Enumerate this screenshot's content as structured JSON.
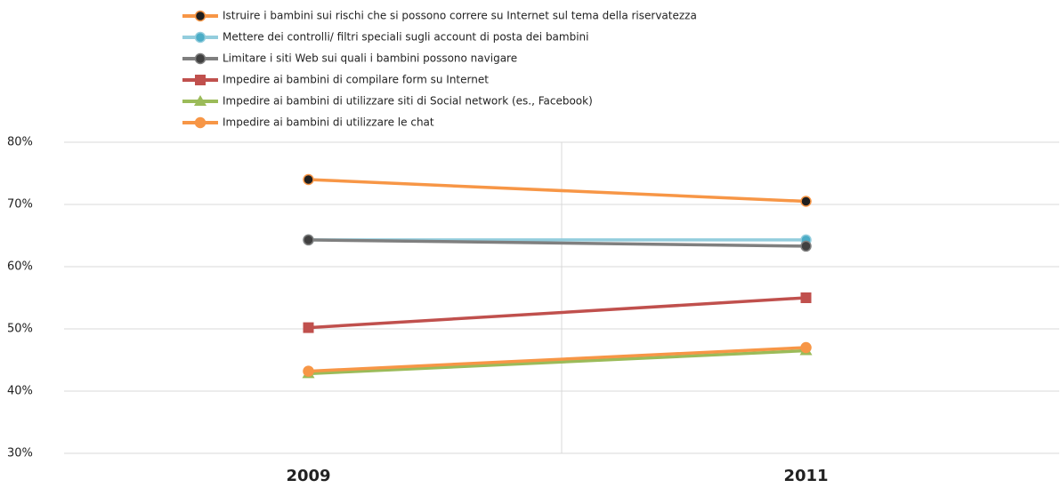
{
  "chart_data": {
    "type": "line",
    "categories": [
      "2009",
      "2011"
    ],
    "series": [
      {
        "name": "Istruire i bambini sui rischi che si possono correre su Internet sul tema della riservatezza",
        "color": "#f79646",
        "marker": "circle",
        "marker_color": "#1f1f1f",
        "values": [
          74,
          70.5
        ]
      },
      {
        "name": "Mettere dei controlli/ filtri speciali sugli account di posta dei bambini",
        "color": "#93cddd",
        "marker": "circle",
        "marker_color": "#4bacc6",
        "values": [
          64.3,
          64.3
        ]
      },
      {
        "name": "Limitare i siti Web sui quali i bambini possono navigare",
        "color": "#7f7f7f",
        "marker": "circle",
        "marker_color": "#404040",
        "values": [
          64.3,
          63.3
        ]
      },
      {
        "name": "Impedire ai bambini di compilare form su Internet",
        "color": "#c0504d",
        "marker": "square",
        "marker_color": "#c0504d",
        "values": [
          50.2,
          55
        ]
      },
      {
        "name": "Impedire ai bambini di utilizzare siti di Social network (es., Facebook)",
        "color": "#9bbb59",
        "marker": "triangle",
        "marker_color": "#9bbb59",
        "values": [
          42.8,
          46.5
        ]
      },
      {
        "name": "Impedire ai bambini di utilizzare le chat",
        "color": "#f79646",
        "marker": "circle",
        "marker_color": "#f79646",
        "values": [
          43.2,
          47
        ]
      }
    ],
    "ylim": [
      30,
      80
    ],
    "yticks": [
      {
        "value": 30,
        "label": "30%"
      },
      {
        "value": 40,
        "label": "40%"
      },
      {
        "value": 50,
        "label": "50%"
      },
      {
        "value": 60,
        "label": "60%"
      },
      {
        "value": 70,
        "label": "70%"
      },
      {
        "value": 80,
        "label": "80%"
      }
    ],
    "grid": true,
    "legend": "top"
  }
}
